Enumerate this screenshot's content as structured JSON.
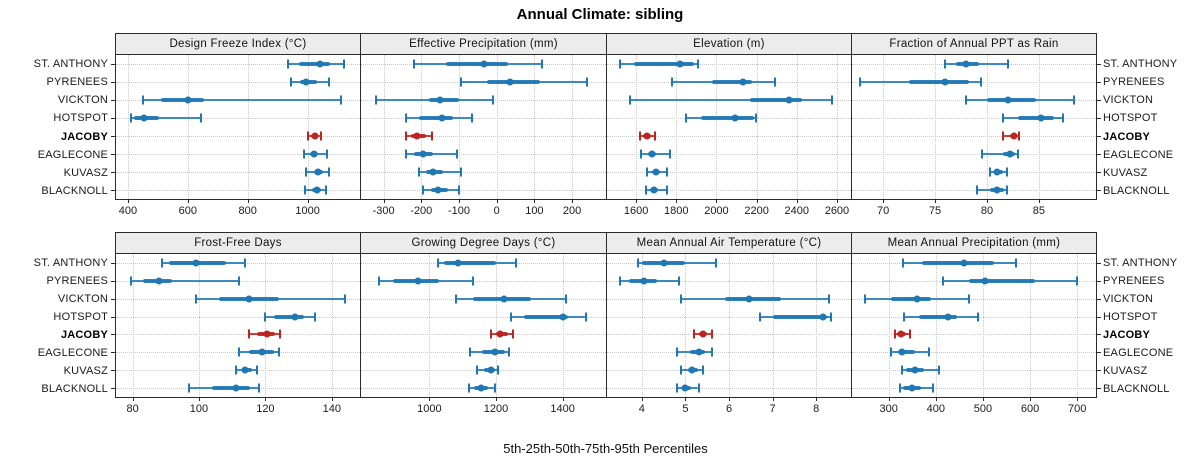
{
  "title": "Annual Climate: sibling",
  "caption": "5th-25th-50th-75th-95th Percentiles",
  "sites": [
    "ST. ANTHONY",
    "PYRENEES",
    "VICKTON",
    "HOTSPOT",
    "JACOBY",
    "EAGLECONE",
    "KUVASZ",
    "BLACKNOLL"
  ],
  "highlight_site": "JACOBY",
  "percentile_labels": [
    "5th",
    "25th",
    "50th",
    "75th",
    "95th"
  ],
  "colors": {
    "series_blue": "#1f77b4",
    "series_red": "#bd2420",
    "grid": "#c9c9c9",
    "strip_bg": "#ececec",
    "panel_border": "#2b2b2b"
  },
  "chart_data": [
    {
      "type": "dotplot",
      "title": "Design Freeze Index (°C)",
      "row": 0,
      "col": 0,
      "xlim": [
        360,
        1175
      ],
      "ticks": [
        400,
        600,
        800,
        1000
      ],
      "values": [
        [
          935,
          970,
          1040,
          1075,
          1120
        ],
        [
          945,
          975,
          995,
          1030,
          1070
        ],
        [
          450,
          510,
          600,
          655,
          1110
        ],
        [
          410,
          420,
          455,
          505,
          645
        ],
        [
          1000,
          1012,
          1025,
          1035,
          1045
        ],
        [
          987,
          1008,
          1020,
          1035,
          1065
        ],
        [
          995,
          1020,
          1035,
          1050,
          1070
        ],
        [
          990,
          1015,
          1030,
          1045,
          1060
        ]
      ]
    },
    {
      "type": "dotplot",
      "title": "Effective Precipitation (mm)",
      "row": 0,
      "col": 1,
      "xlim": [
        -360,
        290
      ],
      "ticks": [
        -300,
        -200,
        -100,
        0,
        100,
        200
      ],
      "values": [
        [
          -220,
          -135,
          -35,
          30,
          120
        ],
        [
          -95,
          -25,
          35,
          115,
          240
        ],
        [
          -320,
          -180,
          -150,
          -100,
          -10
        ],
        [
          -240,
          -205,
          -145,
          -115,
          -65
        ],
        [
          -240,
          -228,
          -212,
          -188,
          -172
        ],
        [
          -240,
          -220,
          -195,
          -170,
          -105
        ],
        [
          -205,
          -188,
          -168,
          -142,
          -95
        ],
        [
          -195,
          -175,
          -155,
          -130,
          -100
        ]
      ]
    },
    {
      "type": "dotplot",
      "title": "Elevation (m)",
      "row": 0,
      "col": 2,
      "xlim": [
        1455,
        2670
      ],
      "ticks": [
        1600,
        1800,
        2000,
        2200,
        2400,
        2600
      ],
      "values": [
        [
          1520,
          1590,
          1820,
          1890,
          1910
        ],
        [
          1780,
          1980,
          2130,
          2175,
          2290
        ],
        [
          1570,
          2165,
          2360,
          2425,
          2575
        ],
        [
          1850,
          1925,
          2090,
          2185,
          2195
        ],
        [
          1620,
          1635,
          1655,
          1675,
          1695
        ],
        [
          1625,
          1660,
          1680,
          1700,
          1770
        ],
        [
          1655,
          1680,
          1700,
          1720,
          1755
        ],
        [
          1650,
          1670,
          1690,
          1710,
          1755
        ]
      ]
    },
    {
      "type": "dotplot",
      "title": "Fraction of Annual PPT as Rain",
      "row": 0,
      "col": 3,
      "xlim": [
        67,
        90.5
      ],
      "ticks": [
        70,
        75,
        80,
        85
      ],
      "values": [
        [
          76,
          77,
          78,
          79.2,
          82
        ],
        [
          67.8,
          72.5,
          76,
          78.3,
          79.4
        ],
        [
          78,
          80,
          82,
          84.7,
          88.4
        ],
        [
          81.5,
          83,
          85.2,
          86.5,
          87.3
        ],
        [
          81.5,
          82.2,
          82.6,
          82.9,
          83.1
        ],
        [
          79.5,
          81.5,
          82.2,
          82.7,
          83
        ],
        [
          80.3,
          80.7,
          81,
          81.5,
          81.9
        ],
        [
          79,
          80.3,
          81,
          81.6,
          81.9
        ]
      ]
    },
    {
      "type": "dotplot",
      "title": "Frost-Free Days",
      "row": 1,
      "col": 0,
      "xlim": [
        75,
        148.5
      ],
      "ticks": [
        80,
        100,
        120,
        140
      ],
      "values": [
        [
          89,
          91,
          99,
          108,
          114
        ],
        [
          79.5,
          83,
          88,
          92,
          112
        ],
        [
          99,
          106,
          115,
          124,
          144
        ],
        [
          120,
          122.5,
          129,
          131.5,
          135
        ],
        [
          115,
          117.5,
          120.5,
          123,
          124.5
        ],
        [
          112,
          115,
          119,
          122.5,
          124
        ],
        [
          111,
          113,
          114,
          116,
          117.5
        ],
        [
          97,
          104,
          111,
          115.5,
          118
        ]
      ]
    },
    {
      "type": "dotplot",
      "title": "Growing Degree Days (°C)",
      "row": 1,
      "col": 1,
      "xlim": [
        795,
        1530
      ],
      "ticks": [
        1000,
        1200,
        1400
      ],
      "values": [
        [
          1025,
          1045,
          1085,
          1200,
          1260
        ],
        [
          850,
          890,
          965,
          1030,
          1130
        ],
        [
          1080,
          1130,
          1225,
          1305,
          1410
        ],
        [
          1245,
          1285,
          1400,
          1415,
          1470
        ],
        [
          1185,
          1200,
          1212,
          1235,
          1250
        ],
        [
          1123,
          1157,
          1198,
          1228,
          1240
        ],
        [
          1142,
          1165,
          1185,
          1196,
          1205
        ],
        [
          1118,
          1135,
          1155,
          1175,
          1198
        ]
      ]
    },
    {
      "type": "dotplot",
      "title": "Mean Annual Air Temperature (°C)",
      "row": 1,
      "col": 2,
      "xlim": [
        3.2,
        8.8
      ],
      "ticks": [
        4,
        5,
        6,
        7,
        8
      ],
      "values": [
        [
          3.9,
          4.0,
          4.5,
          5.0,
          5.7
        ],
        [
          3.5,
          3.7,
          4.05,
          4.35,
          4.85
        ],
        [
          4.9,
          5.9,
          6.45,
          7.2,
          8.3
        ],
        [
          6.7,
          7.0,
          8.15,
          8.25,
          8.35
        ],
        [
          5.2,
          5.3,
          5.4,
          5.5,
          5.6
        ],
        [
          4.8,
          5.1,
          5.3,
          5.45,
          5.6
        ],
        [
          4.9,
          5.05,
          5.15,
          5.28,
          5.4
        ],
        [
          4.8,
          4.92,
          5.0,
          5.12,
          5.3
        ]
      ]
    },
    {
      "type": "dotplot",
      "title": "Mean Annual Precipitation (mm)",
      "row": 1,
      "col": 3,
      "xlim": [
        222,
        740
      ],
      "ticks": [
        300,
        400,
        500,
        600,
        700
      ],
      "values": [
        [
          330,
          370,
          460,
          524,
          570
        ],
        [
          415,
          470,
          505,
          610,
          700
        ],
        [
          250,
          305,
          360,
          390,
          470
        ],
        [
          333,
          365,
          425,
          445,
          490
        ],
        [
          313,
          318,
          325,
          336,
          345
        ],
        [
          305,
          320,
          328,
          355,
          385
        ],
        [
          328,
          337,
          355,
          374,
          407
        ],
        [
          323,
          331,
          350,
          369,
          393
        ]
      ]
    }
  ]
}
